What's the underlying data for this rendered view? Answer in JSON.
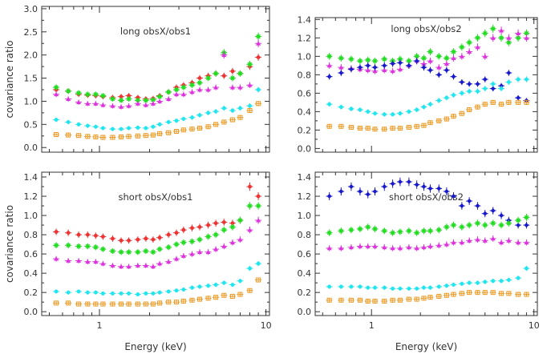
{
  "chart_data": [
    {
      "type": "scatter",
      "title": "long obsX/obs1",
      "ylabel": "covariance ratio",
      "xlabel": "",
      "xscale": "log",
      "xlim": [
        0.45,
        10.5
      ],
      "ylim": [
        -0.1,
        3.05
      ],
      "yticks": [
        0.0,
        0.5,
        1.0,
        1.5,
        2.0,
        2.5,
        3.0
      ],
      "ytick_labels": [
        "0.0",
        "0.5",
        "1.0",
        "1.5",
        "2.0",
        "2.5",
        "3.0"
      ],
      "xticks": [
        1,
        10
      ],
      "xtick_labels": [
        "",
        ""
      ],
      "x": [
        0.55,
        0.65,
        0.75,
        0.85,
        0.95,
        1.05,
        1.2,
        1.35,
        1.5,
        1.7,
        1.9,
        2.1,
        2.3,
        2.6,
        2.9,
        3.2,
        3.6,
        4.0,
        4.5,
        5.0,
        5.6,
        6.3,
        7.0,
        8.0,
        9.0
      ],
      "series": [
        {
          "color": "#ee3333",
          "marker": "circle",
          "values": [
            1.25,
            1.22,
            1.15,
            1.13,
            1.12,
            1.1,
            1.08,
            1.1,
            1.12,
            1.08,
            1.05,
            1.06,
            1.12,
            1.2,
            1.3,
            1.35,
            1.4,
            1.5,
            1.55,
            1.6,
            1.55,
            1.65,
            1.6,
            1.75,
            1.95
          ]
        },
        {
          "color": "#22dd22",
          "marker": "star",
          "values": [
            1.3,
            1.22,
            1.18,
            1.15,
            1.15,
            1.12,
            1.05,
            1.02,
            1.05,
            1.02,
            1.02,
            1.03,
            1.1,
            1.2,
            1.25,
            1.3,
            1.35,
            1.4,
            1.5,
            1.6,
            2.05,
            1.5,
            1.6,
            1.8,
            2.4
          ]
        },
        {
          "color": "#dd33dd",
          "marker": "triangle",
          "values": [
            1.15,
            1.05,
            0.98,
            0.95,
            0.95,
            0.92,
            0.9,
            0.88,
            0.9,
            0.95,
            0.92,
            0.95,
            1.0,
            1.05,
            1.15,
            1.15,
            1.2,
            1.25,
            1.25,
            1.3,
            2.0,
            1.3,
            1.3,
            1.35,
            2.25
          ]
        },
        {
          "color": "#22e5ee",
          "marker": "circle",
          "values": [
            0.6,
            0.55,
            0.5,
            0.47,
            0.45,
            0.42,
            0.4,
            0.4,
            0.42,
            0.43,
            0.42,
            0.45,
            0.5,
            0.55,
            0.58,
            0.62,
            0.65,
            0.7,
            0.75,
            0.78,
            0.85,
            0.8,
            0.85,
            0.9,
            1.25
          ]
        },
        {
          "color": "#ee9922",
          "marker": "square",
          "values": [
            0.28,
            0.27,
            0.26,
            0.24,
            0.23,
            0.22,
            0.22,
            0.23,
            0.24,
            0.25,
            0.26,
            0.27,
            0.3,
            0.32,
            0.35,
            0.38,
            0.4,
            0.42,
            0.45,
            0.5,
            0.55,
            0.6,
            0.65,
            0.8,
            0.95
          ]
        }
      ]
    },
    {
      "type": "scatter",
      "title": "long obsX/obs2",
      "ylabel": "",
      "xlabel": "",
      "xscale": "log",
      "xlim": [
        0.45,
        10.5
      ],
      "ylim": [
        -0.04,
        1.42
      ],
      "yticks": [
        0.0,
        0.2,
        0.4,
        0.6,
        0.8,
        1.0,
        1.2,
        1.4
      ],
      "ytick_labels": [
        "0.0",
        "0.2",
        "0.4",
        "0.6",
        "0.8",
        "1.0",
        "1.2",
        "1.4"
      ],
      "xticks": [
        1,
        10
      ],
      "xtick_labels": [
        "",
        ""
      ],
      "x": [
        0.55,
        0.65,
        0.75,
        0.85,
        0.95,
        1.05,
        1.2,
        1.35,
        1.5,
        1.7,
        1.9,
        2.1,
        2.3,
        2.6,
        2.9,
        3.2,
        3.6,
        4.0,
        4.5,
        5.0,
        5.6,
        6.3,
        7.0,
        8.0,
        9.0
      ],
      "series": [
        {
          "color": "#22dd22",
          "marker": "star",
          "values": [
            1.0,
            0.98,
            0.97,
            0.95,
            0.96,
            0.95,
            0.97,
            0.95,
            0.97,
            0.95,
            1.0,
            0.98,
            1.05,
            1.0,
            0.98,
            1.05,
            1.1,
            1.15,
            1.2,
            1.25,
            1.3,
            1.2,
            1.15,
            1.2,
            1.25
          ]
        },
        {
          "color": "#dd33dd",
          "marker": "triangle",
          "values": [
            0.9,
            0.88,
            0.87,
            0.86,
            0.85,
            0.84,
            0.85,
            0.84,
            0.86,
            0.9,
            0.95,
            0.92,
            0.95,
            0.88,
            0.92,
            0.98,
            1.0,
            1.05,
            1.1,
            1.0,
            1.2,
            1.28,
            1.2,
            1.25,
            1.2
          ]
        },
        {
          "color": "#1a1acc",
          "marker": "diamond",
          "values": [
            0.78,
            0.82,
            0.86,
            0.88,
            0.9,
            0.88,
            0.9,
            0.92,
            0.93,
            0.9,
            0.95,
            0.88,
            0.85,
            0.8,
            0.85,
            0.78,
            0.72,
            0.7,
            0.7,
            0.75,
            0.65,
            0.68,
            0.82,
            0.55,
            0.52
          ]
        },
        {
          "color": "#22e5ee",
          "marker": "circle",
          "values": [
            0.48,
            0.45,
            0.43,
            0.42,
            0.4,
            0.38,
            0.37,
            0.37,
            0.38,
            0.4,
            0.42,
            0.45,
            0.48,
            0.52,
            0.55,
            0.58,
            0.6,
            0.62,
            0.62,
            0.65,
            0.7,
            0.65,
            0.72,
            0.75,
            0.75
          ]
        },
        {
          "color": "#ee9922",
          "marker": "square",
          "values": [
            0.24,
            0.24,
            0.23,
            0.22,
            0.22,
            0.21,
            0.21,
            0.22,
            0.22,
            0.23,
            0.24,
            0.25,
            0.28,
            0.3,
            0.32,
            0.35,
            0.38,
            0.42,
            0.45,
            0.48,
            0.5,
            0.48,
            0.5,
            0.5,
            0.5
          ]
        }
      ]
    },
    {
      "type": "scatter",
      "title": "short obsX/obs1",
      "ylabel": "covariance ratio",
      "xlabel": "Energy (keV)",
      "xscale": "log",
      "xlim": [
        0.45,
        10.5
      ],
      "ylim": [
        -0.04,
        1.45
      ],
      "yticks": [
        0.0,
        0.2,
        0.4,
        0.6,
        0.8,
        1.0,
        1.2,
        1.4
      ],
      "ytick_labels": [
        "0.0",
        "0.2",
        "0.4",
        "0.6",
        "0.8",
        "1.0",
        "1.2",
        "1.4"
      ],
      "xticks": [
        1,
        10
      ],
      "xtick_labels": [
        "1",
        "10"
      ],
      "x": [
        0.55,
        0.65,
        0.75,
        0.85,
        0.95,
        1.05,
        1.2,
        1.35,
        1.5,
        1.7,
        1.9,
        2.1,
        2.3,
        2.6,
        2.9,
        3.2,
        3.6,
        4.0,
        4.5,
        5.0,
        5.6,
        6.3,
        7.0,
        8.0,
        9.0
      ],
      "series": [
        {
          "color": "#ee3333",
          "marker": "circle",
          "values": [
            0.83,
            0.82,
            0.8,
            0.8,
            0.79,
            0.78,
            0.76,
            0.74,
            0.74,
            0.75,
            0.76,
            0.75,
            0.77,
            0.8,
            0.82,
            0.85,
            0.87,
            0.88,
            0.9,
            0.92,
            0.93,
            0.92,
            0.95,
            1.3,
            1.2
          ]
        },
        {
          "color": "#22dd22",
          "marker": "star",
          "values": [
            0.69,
            0.69,
            0.68,
            0.68,
            0.67,
            0.65,
            0.63,
            0.62,
            0.62,
            0.62,
            0.63,
            0.62,
            0.65,
            0.67,
            0.7,
            0.72,
            0.73,
            0.75,
            0.78,
            0.8,
            0.85,
            0.88,
            0.95,
            1.1,
            1.1
          ]
        },
        {
          "color": "#dd33dd",
          "marker": "triangle",
          "values": [
            0.55,
            0.53,
            0.53,
            0.52,
            0.52,
            0.5,
            0.48,
            0.47,
            0.47,
            0.48,
            0.48,
            0.47,
            0.5,
            0.52,
            0.55,
            0.58,
            0.6,
            0.62,
            0.62,
            0.65,
            0.68,
            0.72,
            0.75,
            0.85,
            0.95
          ]
        },
        {
          "color": "#22e5ee",
          "marker": "circle",
          "values": [
            0.21,
            0.2,
            0.21,
            0.2,
            0.2,
            0.19,
            0.19,
            0.19,
            0.19,
            0.18,
            0.19,
            0.19,
            0.2,
            0.21,
            0.22,
            0.23,
            0.25,
            0.26,
            0.27,
            0.28,
            0.3,
            0.28,
            0.32,
            0.45,
            0.5
          ]
        },
        {
          "color": "#ee9922",
          "marker": "square",
          "values": [
            0.09,
            0.09,
            0.08,
            0.08,
            0.08,
            0.08,
            0.08,
            0.08,
            0.08,
            0.08,
            0.08,
            0.08,
            0.09,
            0.1,
            0.1,
            0.11,
            0.12,
            0.13,
            0.14,
            0.15,
            0.17,
            0.16,
            0.18,
            0.22,
            0.33
          ]
        }
      ]
    },
    {
      "type": "scatter",
      "title": "short obsX/obs2",
      "ylabel": "",
      "xlabel": "Energy (keV)",
      "xscale": "log",
      "xlim": [
        0.45,
        10.5
      ],
      "ylim": [
        -0.04,
        1.45
      ],
      "yticks": [
        0.0,
        0.2,
        0.4,
        0.6,
        0.8,
        1.0,
        1.2,
        1.4
      ],
      "ytick_labels": [
        "0.0",
        "0.2",
        "0.4",
        "0.6",
        "0.8",
        "1.0",
        "1.2",
        "1.4"
      ],
      "xticks": [
        1,
        10
      ],
      "xtick_labels": [
        "1",
        "10"
      ],
      "x": [
        0.55,
        0.65,
        0.75,
        0.85,
        0.95,
        1.05,
        1.2,
        1.35,
        1.5,
        1.7,
        1.9,
        2.1,
        2.3,
        2.6,
        2.9,
        3.2,
        3.6,
        4.0,
        4.5,
        5.0,
        5.6,
        6.3,
        7.0,
        8.0,
        9.0
      ],
      "series": [
        {
          "color": "#1a1acc",
          "marker": "diamond",
          "values": [
            1.2,
            1.25,
            1.3,
            1.25,
            1.22,
            1.25,
            1.3,
            1.33,
            1.35,
            1.35,
            1.32,
            1.3,
            1.28,
            1.28,
            1.25,
            1.2,
            1.1,
            1.15,
            1.1,
            1.02,
            1.05,
            1.0,
            0.95,
            0.9,
            0.9
          ]
        },
        {
          "color": "#22dd22",
          "marker": "star",
          "values": [
            0.82,
            0.84,
            0.85,
            0.86,
            0.88,
            0.86,
            0.84,
            0.82,
            0.83,
            0.84,
            0.82,
            0.84,
            0.84,
            0.85,
            0.88,
            0.9,
            0.88,
            0.9,
            0.92,
            0.9,
            0.92,
            0.9,
            0.92,
            0.95,
            0.98
          ]
        },
        {
          "color": "#dd33dd",
          "marker": "triangle",
          "values": [
            0.66,
            0.66,
            0.67,
            0.68,
            0.68,
            0.68,
            0.67,
            0.66,
            0.66,
            0.67,
            0.66,
            0.67,
            0.68,
            0.69,
            0.7,
            0.72,
            0.72,
            0.74,
            0.75,
            0.74,
            0.76,
            0.72,
            0.74,
            0.72,
            0.72
          ]
        },
        {
          "color": "#22e5ee",
          "marker": "circle",
          "values": [
            0.26,
            0.26,
            0.26,
            0.26,
            0.25,
            0.25,
            0.25,
            0.24,
            0.24,
            0.24,
            0.24,
            0.25,
            0.25,
            0.26,
            0.27,
            0.28,
            0.29,
            0.3,
            0.3,
            0.31,
            0.32,
            0.32,
            0.33,
            0.35,
            0.45
          ]
        },
        {
          "color": "#ee9922",
          "marker": "square",
          "values": [
            0.12,
            0.12,
            0.12,
            0.12,
            0.11,
            0.11,
            0.11,
            0.12,
            0.12,
            0.13,
            0.13,
            0.14,
            0.15,
            0.16,
            0.17,
            0.18,
            0.19,
            0.2,
            0.2,
            0.2,
            0.2,
            0.19,
            0.19,
            0.18,
            0.18
          ]
        }
      ]
    }
  ]
}
